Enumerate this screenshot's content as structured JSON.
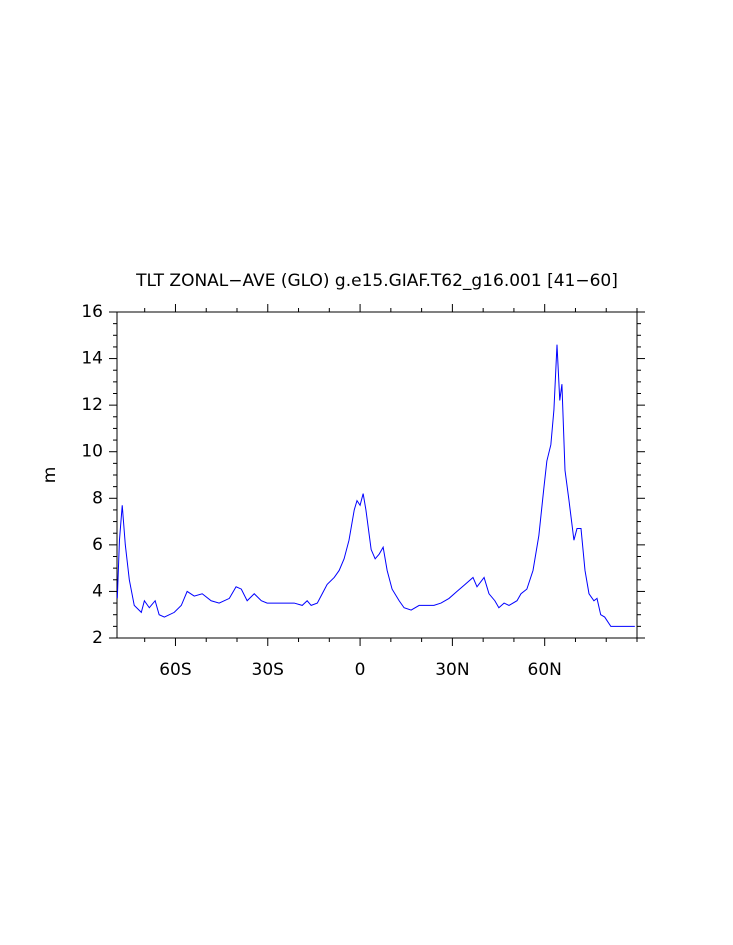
{
  "chart_data": {
    "type": "line",
    "title": "TLT ZONAL−AVE (GLO) g.e15.GIAF.T62_g16.001 [41−60]",
    "y_label": "m",
    "x": [
      -78.9,
      -78.2,
      -77.3,
      -76.3,
      -75.0,
      -73.4,
      -71.1,
      -70.1,
      -68.5,
      -66.6,
      -65.3,
      -63.6,
      -60.4,
      -58.1,
      -56.2,
      -53.9,
      -51.3,
      -48.4,
      -45.8,
      -42.5,
      -40.3,
      -38.6,
      -36.7,
      -34.4,
      -32.1,
      -30.2,
      -26.3,
      -21.4,
      -18.8,
      -17.2,
      -15.9,
      -13.9,
      -12.3,
      -10.7,
      -8.4,
      -6.8,
      -5.2,
      -3.6,
      -1.9,
      -1.0,
      0,
      1.0,
      1.9,
      3.6,
      4.9,
      6.2,
      7.5,
      8.8,
      10.4,
      12.7,
      14.3,
      16.6,
      19.2,
      21.8,
      24.0,
      26.3,
      28.9,
      31.5,
      34.1,
      36.7,
      38.0,
      40.3,
      41.9,
      43.8,
      45.1,
      46.8,
      48.4,
      51.0,
      52.3,
      54.2,
      56.2,
      58.1,
      59.7,
      60.7,
      62.0,
      63.0,
      64.0,
      64.9,
      65.6,
      66.6,
      67.9,
      69.5,
      70.5,
      71.8,
      73.1,
      74.4,
      76.0,
      77.0,
      78.2,
      79.5,
      81.5,
      84.7,
      89.3
    ],
    "series": [
      {
        "name": "TLT",
        "color": "#0000ff",
        "values": [
          3.7,
          6.2,
          7.7,
          6.0,
          4.5,
          3.4,
          3.1,
          3.6,
          3.3,
          3.6,
          3.0,
          2.9,
          3.1,
          3.4,
          4.0,
          3.8,
          3.9,
          3.6,
          3.5,
          3.7,
          4.2,
          4.1,
          3.6,
          3.9,
          3.6,
          3.5,
          3.5,
          3.5,
          3.4,
          3.6,
          3.4,
          3.5,
          3.9,
          4.3,
          4.6,
          4.9,
          5.4,
          6.2,
          7.5,
          7.9,
          7.7,
          8.2,
          7.5,
          5.8,
          5.4,
          5.6,
          5.9,
          4.9,
          4.1,
          3.6,
          3.3,
          3.2,
          3.4,
          3.4,
          3.4,
          3.5,
          3.7,
          4.0,
          4.3,
          4.6,
          4.2,
          4.6,
          3.9,
          3.6,
          3.3,
          3.5,
          3.4,
          3.6,
          3.9,
          4.1,
          4.9,
          6.4,
          8.4,
          9.6,
          10.3,
          11.8,
          14.6,
          12.2,
          12.9,
          9.2,
          7.9,
          6.2,
          6.7,
          6.7,
          4.9,
          3.9,
          3.6,
          3.7,
          3.0,
          2.9,
          2.5,
          2.5,
          2.5
        ]
      }
    ],
    "xlim": [
      -79,
      90
    ],
    "xticks": [
      {
        "value": -60,
        "label": "60S"
      },
      {
        "value": -30,
        "label": "30S"
      },
      0,
      {
        "value": 30,
        "label": "30N"
      },
      {
        "value": 60,
        "label": "60N"
      }
    ],
    "xminorticks": [
      -70,
      -50,
      -40,
      -20,
      -10,
      10,
      20,
      40,
      50,
      70,
      80,
      90
    ],
    "ylim": [
      2,
      16
    ],
    "yticks": [
      2,
      4,
      6,
      8,
      10,
      12,
      14,
      16
    ],
    "yminorticks": [
      2.5,
      3,
      3.5,
      4.5,
      5,
      5.5,
      6.5,
      7,
      7.5,
      8.5,
      9,
      9.5,
      10.5,
      11,
      11.5,
      12.5,
      13,
      13.5,
      14.5,
      15,
      15.5
    ],
    "grid": false
  }
}
